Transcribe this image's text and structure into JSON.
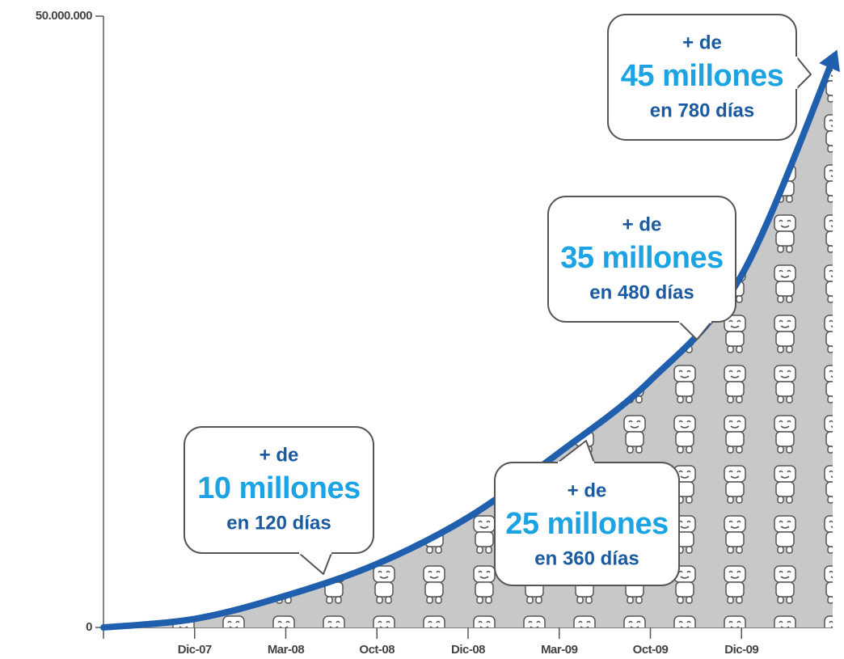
{
  "chart_data": {
    "type": "line",
    "categories": [
      null,
      "Dic-07",
      "Mar-08",
      "Oct-08",
      "Dic-08",
      "Mar-09",
      "Oct-09",
      "Dic-09",
      null
    ],
    "values": [
      0,
      700000,
      2600000,
      5200000,
      9000000,
      14300000,
      20200000,
      28800000,
      46400000
    ],
    "color": "#1f5fad",
    "ylim": [
      0,
      50000000
    ],
    "yticks": [
      0,
      {
        "value": 50000000,
        "label": "50.000.000"
      }
    ],
    "annotations": [
      {
        "lines": [
          "+ de",
          "10 millones",
          "en 120 días"
        ]
      },
      {
        "lines": [
          "+ de",
          "25 millones",
          "en 360 días"
        ]
      },
      {
        "lines": [
          "+ de",
          "35 millones",
          "en 480 días"
        ]
      },
      {
        "lines": [
          "+ de",
          "45 millones",
          "en 780 días"
        ]
      }
    ]
  }
}
